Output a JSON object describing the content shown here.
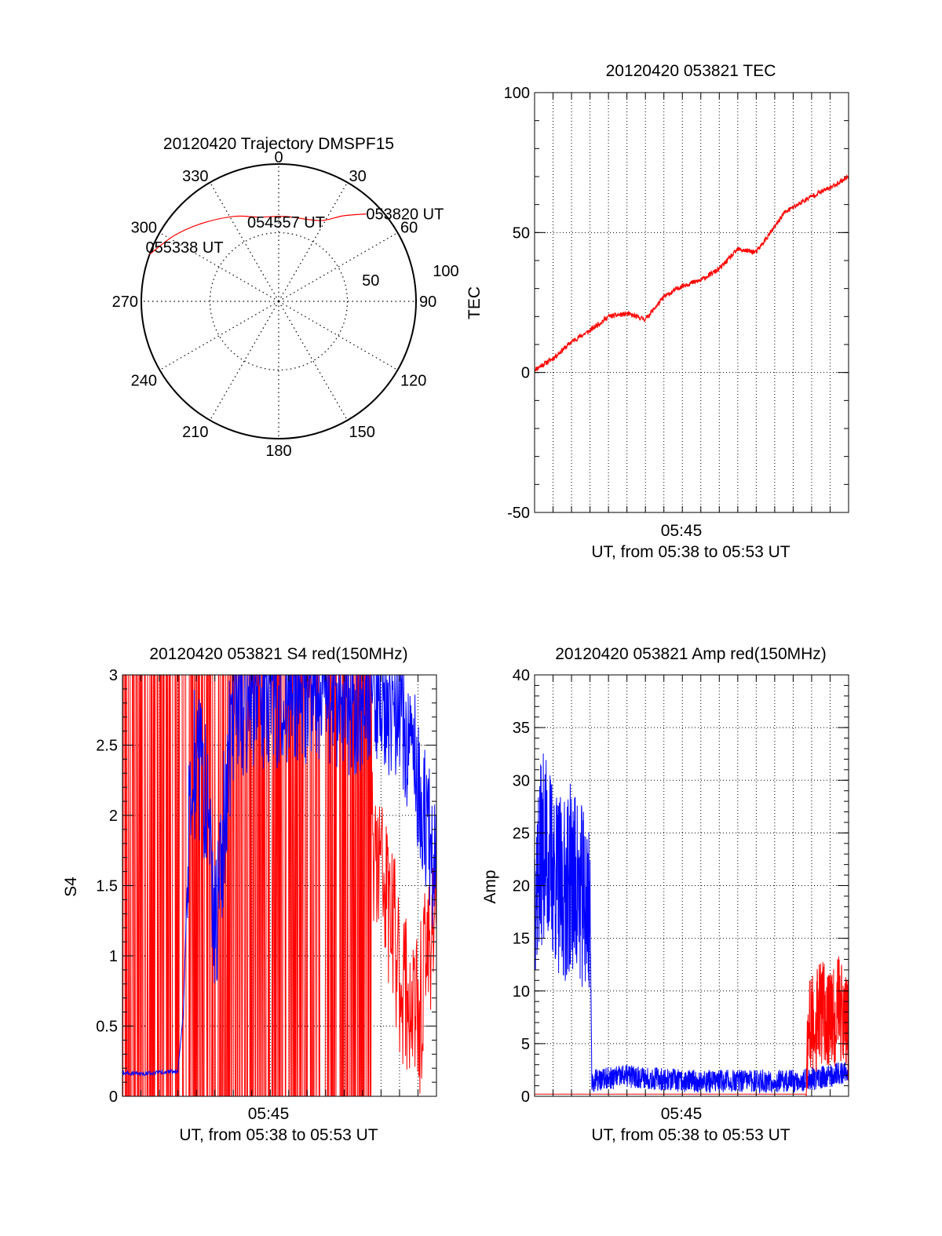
{
  "chart_data": [
    {
      "type": "polar",
      "title": "20120420 Trajectory DMSPF15",
      "azimuth_labels": [
        {
          "deg": 0,
          "text": "0"
        },
        {
          "deg": 30,
          "text": "30"
        },
        {
          "deg": 60,
          "text": "60"
        },
        {
          "deg": 90,
          "text": "90"
        },
        {
          "deg": 120,
          "text": "120"
        },
        {
          "deg": 150,
          "text": "150"
        },
        {
          "deg": 180,
          "text": "180"
        },
        {
          "deg": 210,
          "text": "210"
        },
        {
          "deg": 240,
          "text": "240"
        },
        {
          "deg": 270,
          "text": "270"
        },
        {
          "deg": 300,
          "text": "300"
        },
        {
          "deg": 330,
          "text": "330"
        }
      ],
      "radial_labels": [
        "50",
        "100"
      ],
      "r_max": 100,
      "trajectory": {
        "color": "#ff0000",
        "az": [
          45,
          37,
          27,
          5,
          -13,
          -28,
          -45,
          -58,
          -70
        ],
        "r": [
          90,
          78,
          66,
          62,
          63,
          70,
          80,
          90,
          100
        ]
      },
      "time_labels": [
        {
          "text": "053820 UT",
          "az": 45,
          "r": 90
        },
        {
          "text": "054557 UT",
          "az": 5,
          "r": 62
        },
        {
          "text": "055338 UT",
          "az": -70,
          "r": 100
        }
      ]
    },
    {
      "type": "line",
      "title": "20120420 053821 TEC",
      "ylabel": "TEC",
      "xlabel": "UT, from 05:38 to 05:53 UT",
      "x_tick_label": "05:45",
      "ylim": [
        -50,
        100
      ],
      "yticks": [
        "-50",
        "0",
        "50",
        "100"
      ],
      "series": [
        {
          "color": "#ff0000",
          "x": [
            0,
            1,
            2,
            3,
            4,
            5,
            6,
            7,
            7.5,
            8,
            9,
            10,
            11,
            12,
            13,
            13.5,
            14,
            15,
            16,
            17
          ],
          "y": [
            1,
            5,
            11,
            15,
            20,
            21,
            19,
            27,
            29,
            31,
            33,
            37,
            44,
            43,
            52,
            57,
            59,
            63,
            66,
            70
          ]
        }
      ]
    },
    {
      "type": "line",
      "title": "20120420 053821 S4 red(150MHz)",
      "ylabel": "S4",
      "xlabel": "UT, from 05:38 to 05:53 UT",
      "x_tick_label": "05:45",
      "ylim": [
        0,
        3
      ],
      "yticks": [
        "0",
        "0.5",
        "1",
        "1.5",
        "2",
        "2.5",
        "3"
      ],
      "series": [
        {
          "color": "#ff0000",
          "x": [
            0,
            3.2,
            3.8,
            9.0,
            12.0,
            13.0,
            14.0,
            14.5,
            15.0,
            16.0,
            17.0
          ],
          "y": [
            2.9,
            2.9,
            2.5,
            2.4,
            2.1,
            1.9,
            1.6,
            1.3,
            0.9,
            0.5,
            1.5
          ]
        },
        {
          "color": "#0000ff",
          "x": [
            0,
            1,
            2,
            3,
            3.3,
            3.7,
            4.5,
            5.0,
            6.0,
            9.0,
            12.0,
            14.0,
            15.0,
            16.0,
            17.0
          ],
          "y": [
            0.17,
            0.16,
            0.17,
            0.18,
            0.6,
            2.4,
            2.2,
            1.1,
            2.8,
            2.9,
            2.8,
            2.9,
            2.7,
            2.3,
            1.5
          ]
        }
      ]
    },
    {
      "type": "line",
      "title": "20120420 053821 Amp red(150MHz)",
      "ylabel": "Amp",
      "xlabel": "UT, from 05:38 to 05:53 UT",
      "x_tick_label": "05:45",
      "ylim": [
        0,
        40
      ],
      "yticks": [
        "0",
        "5",
        "10",
        "15",
        "20",
        "25",
        "30",
        "35",
        "40"
      ],
      "series": [
        {
          "color": "#0000ff",
          "x": [
            0,
            0.5,
            1.5,
            2.0,
            2.5,
            3.0,
            3.1,
            5.0,
            8.0,
            11.0,
            14.0,
            15.0,
            16.0,
            17.0
          ],
          "y": [
            20,
            24,
            19,
            21,
            19,
            18,
            1,
            1.5,
            1.0,
            1.0,
            1.0,
            1.2,
            1.5,
            2.0
          ]
        },
        {
          "color": "#ff0000",
          "x": [
            0,
            3.0,
            11.6,
            14.7,
            14.8,
            15.5,
            16.0,
            16.5,
            17.0
          ],
          "y": [
            0.2,
            0.2,
            0.2,
            0.2,
            6.0,
            8.0,
            7.0,
            8.5,
            6.0
          ]
        }
      ]
    }
  ]
}
